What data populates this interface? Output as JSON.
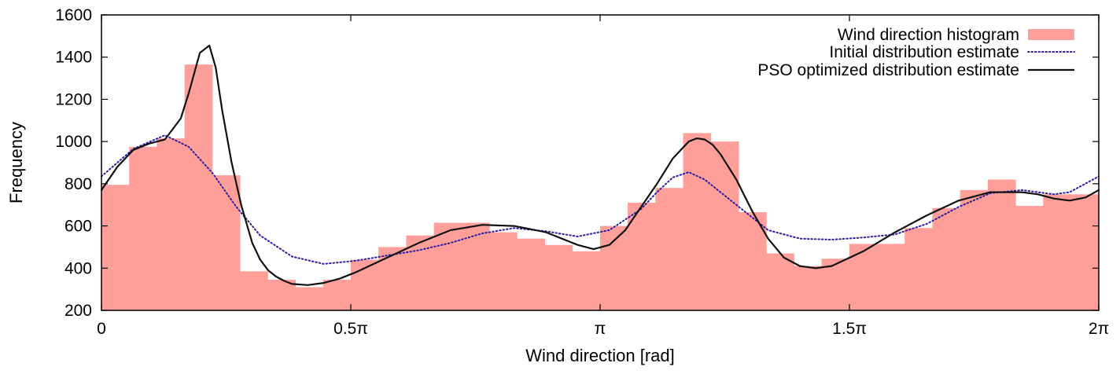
{
  "chart_data": {
    "type": "bar",
    "xlabel": "Wind direction [rad]",
    "ylabel": "Frequency",
    "xlim": [
      0,
      6.2832
    ],
    "ylim": [
      200,
      1600
    ],
    "grid": false,
    "legend_position": "top-right",
    "x_ticks": [
      {
        "value": 0,
        "label": "0"
      },
      {
        "value": 1.5708,
        "label": "0.5π"
      },
      {
        "value": 3.1416,
        "label": "π"
      },
      {
        "value": 4.7124,
        "label": "1.5π"
      },
      {
        "value": 6.2832,
        "label": "2π"
      }
    ],
    "y_ticks": [
      {
        "value": 200,
        "label": "200"
      },
      {
        "value": 400,
        "label": "400"
      },
      {
        "value": 600,
        "label": "600"
      },
      {
        "value": 800,
        "label": "800"
      },
      {
        "value": 1000,
        "label": "1000"
      },
      {
        "value": 1200,
        "label": "1200"
      },
      {
        "value": 1400,
        "label": "1400"
      },
      {
        "value": 1600,
        "label": "1600"
      }
    ],
    "histogram": {
      "name": "Wind direction histogram",
      "color": "#ff9f9a",
      "bin_width": 0.1745,
      "bin_start": 0,
      "values": [
        795,
        975,
        1015,
        1365,
        840,
        385,
        345,
        310,
        345,
        440,
        500,
        555,
        615,
        615,
        570,
        540,
        510,
        480,
        600,
        710,
        780,
        1040,
        1000,
        665,
        470,
        410,
        445,
        515,
        515,
        590,
        685,
        770,
        820,
        695,
        750,
        750
      ]
    },
    "series": [
      {
        "name": "Initial distribution estimate",
        "color": "#2a1fa0",
        "style": "dotted",
        "x": [
          0,
          0.2,
          0.4,
          0.55,
          0.7,
          0.85,
          1.0,
          1.2,
          1.4,
          1.6,
          1.8,
          2.0,
          2.2,
          2.4,
          2.6,
          2.8,
          3.0,
          3.2,
          3.4,
          3.5,
          3.6,
          3.7,
          3.8,
          4.0,
          4.2,
          4.4,
          4.6,
          4.8,
          5.0,
          5.2,
          5.4,
          5.6,
          5.8,
          6.0,
          6.1,
          6.2832
        ],
        "y": [
          835,
          965,
          1030,
          975,
          850,
          690,
          555,
          455,
          420,
          435,
          460,
          485,
          520,
          565,
          590,
          575,
          550,
          580,
          680,
          760,
          830,
          855,
          820,
          700,
          580,
          540,
          535,
          545,
          560,
          610,
          690,
          755,
          770,
          750,
          760,
          835
        ]
      },
      {
        "name": "PSO optimized distribution estimate",
        "color": "#111111",
        "style": "solid",
        "x": [
          0,
          0.1,
          0.2,
          0.3,
          0.4,
          0.5,
          0.55,
          0.62,
          0.68,
          0.72,
          0.76,
          0.82,
          0.88,
          0.95,
          1.0,
          1.05,
          1.1,
          1.15,
          1.2,
          1.3,
          1.4,
          1.5,
          1.6,
          1.8,
          2.0,
          2.2,
          2.4,
          2.6,
          2.8,
          3.0,
          3.1,
          3.2,
          3.3,
          3.4,
          3.5,
          3.6,
          3.7,
          3.75,
          3.8,
          3.85,
          3.9,
          4.0,
          4.1,
          4.2,
          4.3,
          4.4,
          4.5,
          4.6,
          4.8,
          5.0,
          5.2,
          5.4,
          5.6,
          5.8,
          5.9,
          6.0,
          6.1,
          6.2,
          6.2832
        ],
        "y": [
          770,
          880,
          960,
          990,
          1010,
          1110,
          1230,
          1420,
          1455,
          1350,
          1150,
          900,
          700,
          520,
          440,
          390,
          360,
          340,
          325,
          320,
          330,
          350,
          380,
          450,
          520,
          580,
          605,
          600,
          570,
          510,
          490,
          510,
          580,
          690,
          800,
          920,
          1000,
          1015,
          1010,
          985,
          940,
          820,
          670,
          540,
          450,
          410,
          400,
          410,
          480,
          570,
          650,
          720,
          760,
          760,
          750,
          730,
          720,
          735,
          770
        ]
      }
    ]
  }
}
